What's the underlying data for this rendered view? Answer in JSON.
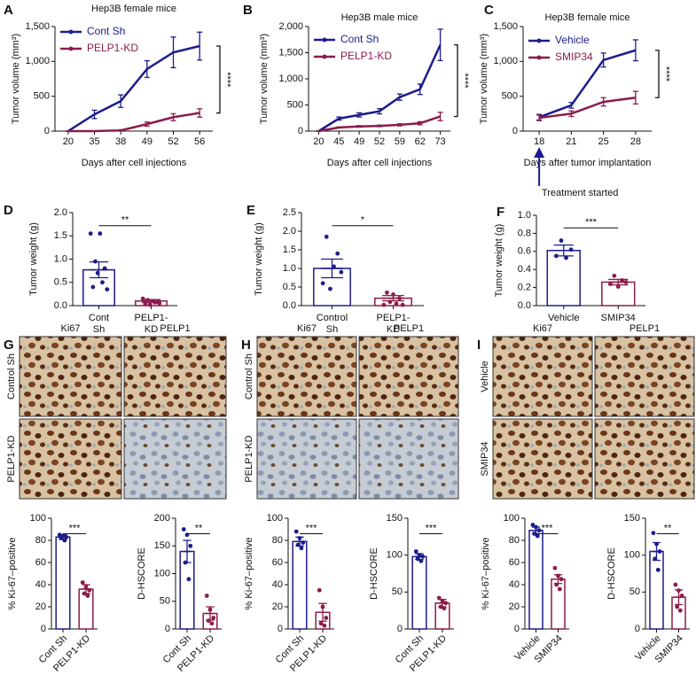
{
  "chart_data": [
    {
      "type": "line",
      "panel": "A",
      "title": "Hep3B female mice",
      "xlabel": "Days after cell injections",
      "ylabel": "Tumor volume (mm³)",
      "categories": [
        "20",
        "35",
        "38",
        "49",
        "52",
        "56"
      ],
      "ylim": [
        0,
        1500
      ],
      "yticks": [
        0,
        500,
        {
          "value": 1000,
          "label": "1,000"
        },
        {
          "value": 1500,
          "label": "1,500"
        }
      ],
      "legend": "upper left",
      "significance": "****",
      "series": [
        {
          "name": "Cont Sh",
          "color": "#1c1c8c",
          "values": [
            0,
            240,
            430,
            890,
            1130,
            1220
          ],
          "errors": [
            0,
            60,
            90,
            120,
            220,
            200
          ]
        },
        {
          "name": "PELP1-KD",
          "color": "#8c1c4c",
          "values": [
            0,
            0,
            10,
            100,
            200,
            260
          ],
          "errors": [
            0,
            0,
            10,
            30,
            50,
            60
          ]
        }
      ]
    },
    {
      "type": "line",
      "panel": "B",
      "title": "Hep3B male mice",
      "xlabel": "Days after cell injections",
      "ylabel": "Tumor volume (mm³)",
      "categories": [
        "20",
        "45",
        "49",
        "52",
        "59",
        "62",
        "73"
      ],
      "ylim": [
        0,
        2000
      ],
      "yticks": [
        0,
        500,
        {
          "value": 1000,
          "label": "1,000"
        },
        {
          "value": 1500,
          "label": "1,500"
        },
        {
          "value": 2000,
          "label": "2,000"
        }
      ],
      "legend": "upper left",
      "significance": "****",
      "series": [
        {
          "name": "Cont Sh",
          "color": "#1c1c8c",
          "values": [
            0,
            240,
            310,
            380,
            650,
            800,
            1650
          ],
          "errors": [
            0,
            30,
            40,
            50,
            60,
            100,
            300
          ]
        },
        {
          "name": "PELP1-KD",
          "color": "#8c1c4c",
          "values": [
            0,
            70,
            90,
            100,
            120,
            150,
            280
          ],
          "errors": [
            0,
            10,
            15,
            15,
            20,
            30,
            80
          ]
        }
      ]
    },
    {
      "type": "line",
      "panel": "C",
      "title": "Hep3B female mice",
      "xlabel": "Days after tumor implantation",
      "ylabel": "Tumor volume (mm³)",
      "annotation": "Treatment started",
      "categories": [
        "18",
        "21",
        "25",
        "28"
      ],
      "ylim": [
        0,
        1500
      ],
      "yticks": [
        0,
        500,
        {
          "value": 1000,
          "label": "1,000"
        },
        {
          "value": 1500,
          "label": "1,500"
        }
      ],
      "legend": "upper left",
      "significance": "****",
      "series": [
        {
          "name": "Vehicle",
          "color": "#1c1c8c",
          "values": [
            200,
            370,
            1020,
            1160
          ],
          "errors": [
            40,
            40,
            100,
            150
          ]
        },
        {
          "name": "SMIP34",
          "color": "#8c1c4c",
          "values": [
            190,
            250,
            420,
            480
          ],
          "errors": [
            40,
            40,
            60,
            90
          ]
        }
      ]
    },
    {
      "type": "bar",
      "panel": "D",
      "ylabel": "Tumor weight (g)",
      "categories": [
        [
          "Cont",
          "Sh"
        ],
        [
          "PELP1-",
          "KD"
        ]
      ],
      "ylim": [
        0,
        2
      ],
      "yticks": [
        {
          "value": 0,
          "label": "0.0"
        },
        {
          "value": 0.5,
          "label": "0.5"
        },
        {
          "value": 1,
          "label": "1.0"
        },
        {
          "value": 1.5,
          "label": "1.5"
        },
        {
          "value": 2,
          "label": "2.0"
        }
      ],
      "colors": [
        "#1c1c8c",
        "#8c1c4c"
      ],
      "values": [
        0.77,
        0.1
      ],
      "errors": [
        0.17,
        0.03
      ],
      "significance": "**",
      "points": [
        [
          1.55,
          0.4,
          0.95,
          0.7,
          1.55,
          0.5,
          0.8,
          0.35
        ],
        [
          0.15,
          0.04,
          0.12,
          0.02,
          0.1,
          0.07,
          0.08,
          0.05
        ]
      ]
    },
    {
      "type": "bar",
      "panel": "E",
      "ylabel": "Tumor weight (g)",
      "categories": [
        [
          "Control",
          "Sh"
        ],
        [
          "PELP1-",
          "KD"
        ]
      ],
      "ylim": [
        0,
        2.5
      ],
      "yticks": [
        {
          "value": 0,
          "label": "0.0"
        },
        {
          "value": 0.5,
          "label": "0.5"
        },
        {
          "value": 1,
          "label": "1.0"
        },
        {
          "value": 1.5,
          "label": "1.5"
        },
        {
          "value": 2,
          "label": "2.0"
        },
        {
          "value": 2.5,
          "label": "2.5"
        }
      ],
      "colors": [
        "#1c1c8c",
        "#8c1c4c"
      ],
      "values": [
        1.0,
        0.2
      ],
      "errors": [
        0.25,
        0.07
      ],
      "significance": "*",
      "points": [
        [
          0.6,
          1.85,
          0.45,
          1.05,
          1.4,
          0.9
        ],
        [
          0.02,
          0.35,
          0.1,
          0.3,
          0.05,
          0.2,
          0.02
        ]
      ]
    },
    {
      "type": "bar",
      "panel": "F",
      "ylabel": "Tumor weight (g)",
      "categories": [
        [
          "Vehicle"
        ],
        [
          "SMIP34"
        ]
      ],
      "ylim": [
        0,
        1
      ],
      "yticks": [
        {
          "value": 0,
          "label": "0.0"
        },
        {
          "value": 0.2,
          "label": "0.2"
        },
        {
          "value": 0.4,
          "label": "0.4"
        },
        {
          "value": 0.6,
          "label": "0.6"
        },
        {
          "value": 0.8,
          "label": "0.8"
        },
        {
          "value": 1,
          "label": "1.0"
        }
      ],
      "colors": [
        "#1c1c8c",
        "#8c1c4c"
      ],
      "values": [
        0.61,
        0.26
      ],
      "errors": [
        0.06,
        0.03
      ],
      "significance": "***",
      "points": [
        [
          0.55,
          0.72,
          0.53,
          0.62
        ],
        [
          0.24,
          0.33,
          0.21,
          0.28,
          0.26
        ]
      ]
    },
    {
      "type": "bar",
      "ylabel": "% Ki-67–positive",
      "categories": [
        "Cont Sh",
        "PELP1-KD"
      ],
      "ylim": [
        0,
        100
      ],
      "yticks": [
        0,
        20,
        40,
        60,
        80,
        100
      ],
      "colors": [
        "#1c1c8c",
        "#8c1c4c"
      ],
      "values": [
        83,
        36
      ],
      "errors": [
        2,
        4
      ],
      "significance": "***",
      "points": [
        [
          85,
          82,
          84,
          80,
          83
        ],
        [
          42,
          32,
          38,
          30,
          35
        ]
      ]
    },
    {
      "type": "bar",
      "ylabel": "D-HSCORE",
      "categories": [
        "Cont Sh",
        "PELP1-KD"
      ],
      "ylim": [
        0,
        200
      ],
      "yticks": [
        0,
        50,
        100,
        150,
        200
      ],
      "colors": [
        "#1c1c8c",
        "#8c1c4c"
      ],
      "values": [
        140,
        28
      ],
      "errors": [
        20,
        12
      ],
      "significance": "**",
      "points": [
        [
          180,
          120,
          170,
          90,
          150
        ],
        [
          60,
          15,
          35,
          10,
          20
        ]
      ]
    },
    {
      "type": "bar",
      "ylabel": "% Ki-67–positive",
      "categories": [
        "Cont Sh",
        "PELP1-KD"
      ],
      "ylim": [
        0,
        100
      ],
      "yticks": [
        0,
        20,
        40,
        60,
        80,
        100
      ],
      "colors": [
        "#1c1c8c",
        "#8c1c4c"
      ],
      "values": [
        79,
        15
      ],
      "errors": [
        4,
        8
      ],
      "significance": "***",
      "points": [
        [
          88,
          76,
          82,
          73,
          78
        ],
        [
          35,
          5,
          20,
          3,
          10
        ]
      ]
    },
    {
      "type": "bar",
      "ylabel": "D-HSCORE",
      "categories": [
        "Cont Sh",
        "PELP1-KD"
      ],
      "ylim": [
        0,
        150
      ],
      "yticks": [
        0,
        50,
        100,
        150
      ],
      "colors": [
        "#1c1c8c",
        "#8c1c4c"
      ],
      "values": [
        98,
        35
      ],
      "errors": [
        4,
        5
      ],
      "significance": "***",
      "points": [
        [
          105,
          95,
          100,
          92,
          98
        ],
        [
          42,
          30,
          38,
          28,
          35
        ]
      ]
    },
    {
      "type": "bar",
      "ylabel": "% Ki-67–positive",
      "categories": [
        "Vehicle",
        "SMIP34"
      ],
      "ylim": [
        0,
        100
      ],
      "yticks": [
        0,
        20,
        40,
        60,
        80,
        100
      ],
      "colors": [
        "#1c1c8c",
        "#8c1c4c"
      ],
      "values": [
        89,
        45
      ],
      "errors": [
        3,
        4
      ],
      "significance": "***",
      "points": [
        [
          94,
          86,
          92,
          84,
          89
        ],
        [
          55,
          40,
          48,
          36,
          45
        ]
      ]
    },
    {
      "type": "bar",
      "ylabel": "D-HSCORE",
      "categories": [
        "Vehicle",
        "SMIP34"
      ],
      "ylim": [
        0,
        150
      ],
      "yticks": [
        0,
        50,
        100,
        150
      ],
      "colors": [
        "#1c1c8c",
        "#8c1c4c"
      ],
      "values": [
        105,
        43
      ],
      "errors": [
        12,
        10
      ],
      "significance": "**",
      "points": [
        [
          130,
          95,
          115,
          80,
          105
        ],
        [
          60,
          30,
          52,
          25,
          45
        ]
      ]
    }
  ],
  "image_panels": [
    {
      "panel": "G",
      "columns": [
        "Ki67",
        "PELP1"
      ],
      "rows": [
        "Control Sh",
        "PELP1-KD"
      ]
    },
    {
      "panel": "H",
      "columns": [
        "Ki67",
        "PELP1"
      ],
      "rows": [
        "Control Sh",
        "PELP1-KD"
      ]
    },
    {
      "panel": "I",
      "columns": [
        "Ki67",
        "PELP1"
      ],
      "rows": [
        "Vehicle",
        "SMIP34"
      ]
    }
  ]
}
